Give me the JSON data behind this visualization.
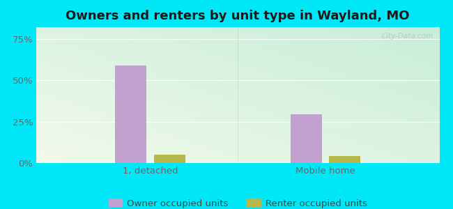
{
  "title": "Owners and renters by unit type in Wayland, MO",
  "categories": [
    "1, detached",
    "Mobile home"
  ],
  "owner_values": [
    0.588,
    0.294
  ],
  "renter_values": [
    0.05,
    0.044
  ],
  "owner_color": "#c2a0d0",
  "renter_color": "#b8b84a",
  "background_outer": "#00e8f8",
  "watermark": "City-Data.com",
  "legend_owner": "Owner occupied units",
  "legend_renter": "Renter occupied units",
  "yticks": [
    0.0,
    0.25,
    0.5,
    0.75
  ],
  "ytick_labels": [
    "0%",
    "25%",
    "50%",
    "75%"
  ],
  "ylim": [
    0,
    0.82
  ],
  "bar_width": 0.18,
  "title_fontsize": 13,
  "tick_fontsize": 9.5,
  "legend_fontsize": 9.5
}
